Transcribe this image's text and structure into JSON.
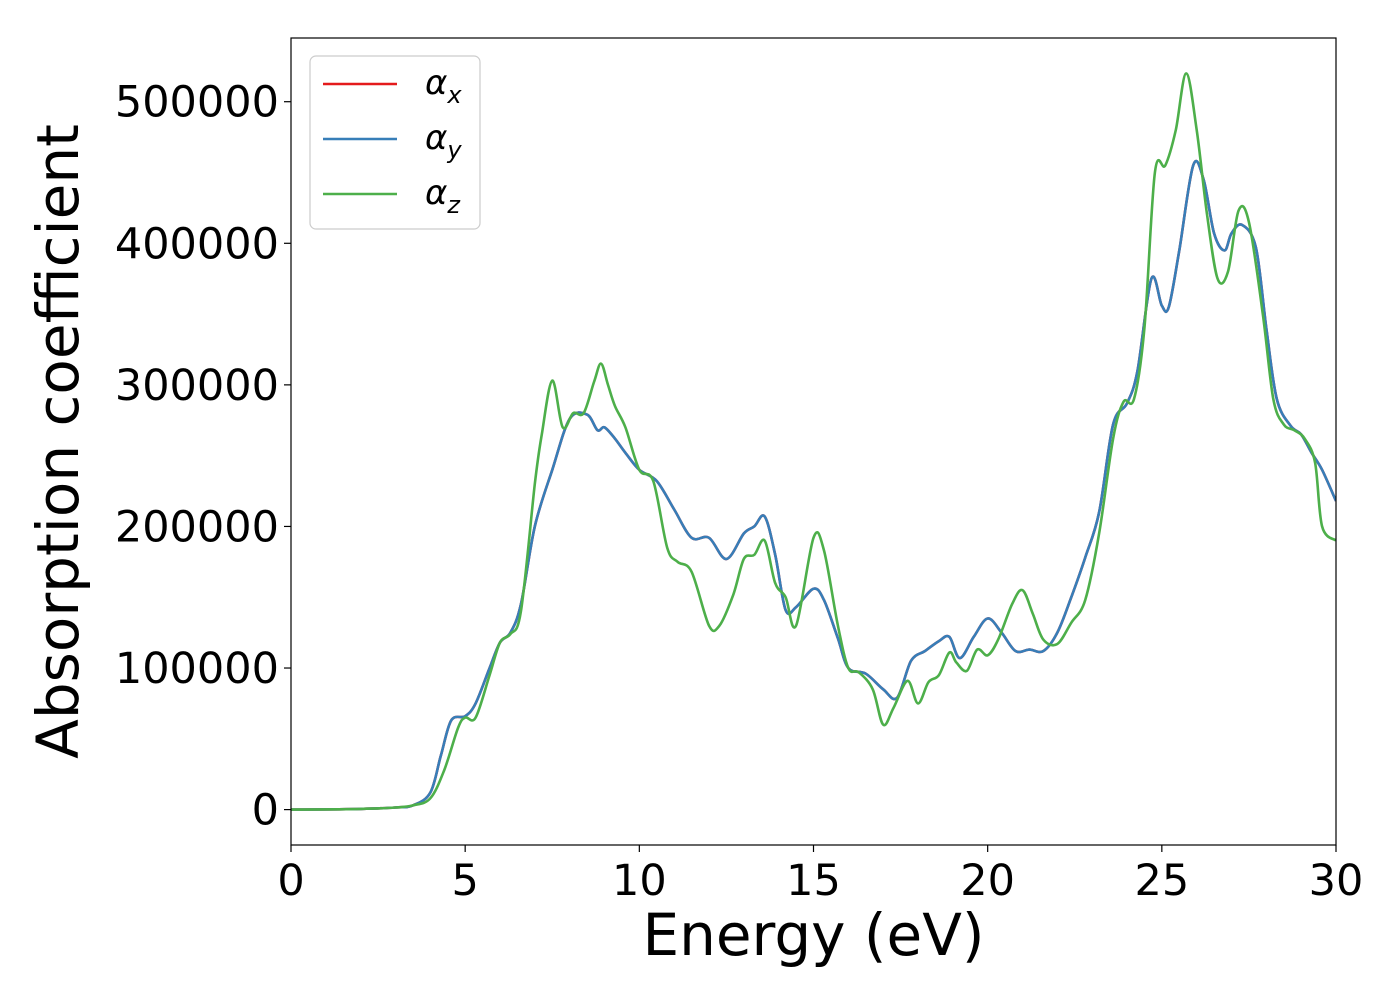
{
  "chart_data": {
    "type": "line",
    "title": "",
    "xlabel": "Energy (eV)",
    "ylabel": "Absorption coefficient",
    "xlim": [
      0,
      30
    ],
    "ylim": [
      -25000,
      545000
    ],
    "x_ticks": [
      0,
      5,
      10,
      15,
      20,
      25,
      30
    ],
    "y_ticks": [
      0,
      100000,
      200000,
      300000,
      400000,
      500000
    ],
    "x_tick_labels": [
      "0",
      "5",
      "10",
      "15",
      "20",
      "25",
      "30"
    ],
    "y_tick_labels": [
      "0",
      "100000",
      "200000",
      "300000",
      "400000",
      "500000"
    ],
    "grid": false,
    "legend_position": "top-left",
    "series": [
      {
        "name": "αx",
        "symbol": "α",
        "subscript": "x",
        "color": "#e41a1c",
        "x": [
          0,
          2,
          3,
          3.5,
          4,
          4.3,
          4.6,
          5.0,
          5.3,
          5.7,
          6.0,
          6.3,
          6.6,
          7.0,
          7.5,
          8.0,
          8.5,
          8.8,
          9.0,
          9.3,
          9.6,
          10.0,
          10.5,
          11.0,
          11.5,
          12.0,
          12.5,
          13.0,
          13.3,
          13.6,
          13.9,
          14.2,
          14.5,
          15.0,
          15.3,
          15.7,
          16.0,
          16.5,
          17.0,
          17.4,
          17.8,
          18.2,
          18.6,
          18.9,
          19.2,
          19.6,
          20.0,
          20.4,
          20.8,
          21.2,
          21.6,
          22.0,
          22.4,
          22.8,
          23.2,
          23.6,
          24.0,
          24.3,
          24.7,
          25.0,
          25.2,
          25.5,
          25.9,
          26.2,
          26.5,
          26.8,
          27.0,
          27.3,
          27.7,
          28.0,
          28.3,
          28.7,
          29.0,
          29.3,
          29.6,
          30.0
        ],
        "y": [
          0,
          500,
          1500,
          3000,
          12000,
          38000,
          63000,
          66000,
          75000,
          100000,
          118000,
          125000,
          145000,
          200000,
          240000,
          276000,
          279000,
          268000,
          270000,
          262000,
          252000,
          240000,
          232000,
          212000,
          192000,
          192000,
          177000,
          195000,
          200000,
          207000,
          180000,
          141000,
          143000,
          156000,
          148000,
          121000,
          100000,
          96000,
          85000,
          79000,
          105000,
          112000,
          119000,
          122000,
          107000,
          122000,
          135000,
          125000,
          112000,
          113000,
          112000,
          125000,
          150000,
          178000,
          210000,
          272000,
          287000,
          310000,
          375000,
          356000,
          355000,
          395000,
          455000,
          445000,
          407000,
          395000,
          407000,
          413000,
          397000,
          340000,
          290000,
          271000,
          265000,
          252000,
          240000,
          218000
        ]
      },
      {
        "name": "αy",
        "symbol": "α",
        "subscript": "y",
        "color": "#377eb8",
        "x": [
          0,
          2,
          3,
          3.5,
          4,
          4.3,
          4.6,
          5.0,
          5.3,
          5.7,
          6.0,
          6.3,
          6.6,
          7.0,
          7.5,
          8.0,
          8.5,
          8.8,
          9.0,
          9.3,
          9.6,
          10.0,
          10.5,
          11.0,
          11.5,
          12.0,
          12.5,
          13.0,
          13.3,
          13.6,
          13.9,
          14.2,
          14.5,
          15.0,
          15.3,
          15.7,
          16.0,
          16.5,
          17.0,
          17.4,
          17.8,
          18.2,
          18.6,
          18.9,
          19.2,
          19.6,
          20.0,
          20.4,
          20.8,
          21.2,
          21.6,
          22.0,
          22.4,
          22.8,
          23.2,
          23.6,
          24.0,
          24.3,
          24.7,
          25.0,
          25.2,
          25.5,
          25.9,
          26.2,
          26.5,
          26.8,
          27.0,
          27.3,
          27.7,
          28.0,
          28.3,
          28.7,
          29.0,
          29.3,
          29.6,
          30.0
        ],
        "y": [
          0,
          500,
          1500,
          3000,
          12000,
          38000,
          63000,
          66000,
          75000,
          100000,
          118000,
          125000,
          145000,
          200000,
          240000,
          276000,
          279000,
          268000,
          270000,
          262000,
          252000,
          240000,
          232000,
          212000,
          192000,
          192000,
          177000,
          195000,
          200000,
          207000,
          180000,
          141000,
          143000,
          156000,
          148000,
          121000,
          100000,
          96000,
          85000,
          79000,
          105000,
          112000,
          119000,
          122000,
          107000,
          122000,
          135000,
          125000,
          112000,
          113000,
          112000,
          125000,
          150000,
          178000,
          210000,
          272000,
          287000,
          310000,
          375000,
          356000,
          355000,
          395000,
          455000,
          445000,
          407000,
          395000,
          407000,
          413000,
          397000,
          340000,
          290000,
          271000,
          265000,
          252000,
          240000,
          218000
        ]
      },
      {
        "name": "αz",
        "symbol": "α",
        "subscript": "z",
        "color": "#4daf4a",
        "x": [
          0,
          2,
          3,
          3.5,
          4,
          4.4,
          4.8,
          5.0,
          5.3,
          5.7,
          6.0,
          6.3,
          6.6,
          7.0,
          7.2,
          7.5,
          7.8,
          8.1,
          8.4,
          8.7,
          8.9,
          9.1,
          9.3,
          9.6,
          10.0,
          10.4,
          10.8,
          11.1,
          11.5,
          12.0,
          12.3,
          12.7,
          13.0,
          13.3,
          13.6,
          13.9,
          14.2,
          14.5,
          15.0,
          15.3,
          15.7,
          16.0,
          16.3,
          16.7,
          17.0,
          17.3,
          17.7,
          18.0,
          18.3,
          18.6,
          18.9,
          19.1,
          19.4,
          19.7,
          20.0,
          20.3,
          20.7,
          21.0,
          21.3,
          21.6,
          22.0,
          22.4,
          22.8,
          23.2,
          23.6,
          23.9,
          24.2,
          24.5,
          24.8,
          25.1,
          25.4,
          25.7,
          26.0,
          26.3,
          26.6,
          26.9,
          27.2,
          27.5,
          27.9,
          28.2,
          28.5,
          28.8,
          29.1,
          29.4,
          29.6,
          30.0
        ],
        "y": [
          0,
          500,
          1500,
          3000,
          8000,
          28000,
          58000,
          65000,
          65000,
          95000,
          118000,
          124000,
          140000,
          230000,
          265000,
          303000,
          270000,
          280000,
          280000,
          302000,
          315000,
          300000,
          285000,
          270000,
          240000,
          232000,
          185000,
          175000,
          168000,
          130000,
          130000,
          152000,
          177000,
          180000,
          190000,
          160000,
          150000,
          130000,
          192000,
          183000,
          130000,
          100000,
          97000,
          85000,
          60000,
          72000,
          91000,
          75000,
          90000,
          95000,
          111000,
          104000,
          98000,
          113000,
          109000,
          120000,
          145000,
          155000,
          138000,
          120000,
          117000,
          132000,
          148000,
          195000,
          262000,
          288000,
          290000,
          340000,
          450000,
          455000,
          480000,
          520000,
          480000,
          420000,
          375000,
          380000,
          423000,
          415000,
          350000,
          290000,
          272000,
          268000,
          262000,
          245000,
          200000,
          190000
        ]
      }
    ]
  }
}
